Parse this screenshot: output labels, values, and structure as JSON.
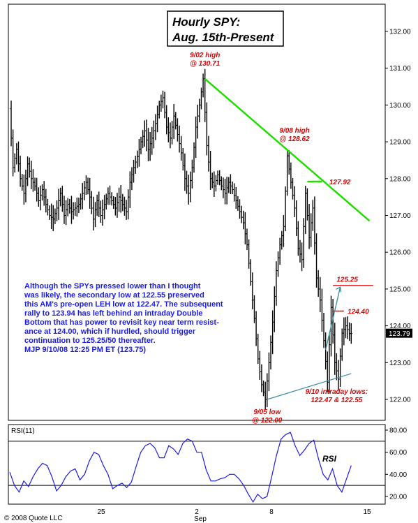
{
  "chart_data": [
    {
      "type": "ohlc",
      "title_lines": [
        "Hourly SPY:",
        "Aug. 15th-Present"
      ],
      "ylim": [
        121.4,
        132.4
      ],
      "price_ticks": [
        "132.00",
        "131.00",
        "130.00",
        "129.00",
        "128.00",
        "127.00",
        "126.00",
        "125.00",
        "124.00",
        "123.00",
        "122.00"
      ],
      "price_tick_values": [
        132,
        131,
        130,
        129,
        128,
        127,
        126,
        125,
        124,
        123,
        122
      ],
      "last_price": "123.79",
      "path": [
        [
          0,
          129.9
        ],
        [
          2,
          128.3
        ],
        [
          4,
          128.8
        ],
        [
          6,
          128.0
        ],
        [
          8,
          127.6
        ],
        [
          10,
          128.4
        ],
        [
          12,
          128.0
        ],
        [
          14,
          127.8
        ],
        [
          16,
          127.4
        ],
        [
          18,
          127.7
        ],
        [
          20,
          127.3
        ],
        [
          22,
          127.0
        ],
        [
          24,
          126.9
        ],
        [
          26,
          127.2
        ],
        [
          28,
          127.6
        ],
        [
          30,
          127.0
        ],
        [
          32,
          127.3
        ],
        [
          34,
          127.1
        ],
        [
          36,
          127.2
        ],
        [
          38,
          127.3
        ],
        [
          40,
          127.6
        ],
        [
          42,
          127.9
        ],
        [
          44,
          127.5
        ],
        [
          46,
          126.9
        ],
        [
          48,
          127.4
        ],
        [
          50,
          127.0
        ],
        [
          52,
          127.3
        ],
        [
          54,
          127.6
        ],
        [
          56,
          127.4
        ],
        [
          58,
          127.2
        ],
        [
          60,
          127.5
        ],
        [
          62,
          127.3
        ],
        [
          64,
          127.1
        ],
        [
          66,
          127.9
        ],
        [
          68,
          128.3
        ],
        [
          70,
          128.6
        ],
        [
          72,
          129.0
        ],
        [
          74,
          129.3
        ],
        [
          76,
          128.8
        ],
        [
          78,
          129.1
        ],
        [
          80,
          129.5
        ],
        [
          82,
          130.0
        ],
        [
          84,
          130.2
        ],
        [
          86,
          129.4
        ],
        [
          88,
          129.1
        ],
        [
          90,
          129.7
        ],
        [
          92,
          129.2
        ],
        [
          94,
          128.7
        ],
        [
          96,
          128.0
        ],
        [
          98,
          127.6
        ],
        [
          100,
          128.3
        ],
        [
          102,
          129.4
        ],
        [
          104,
          130.0
        ],
        [
          106,
          130.71
        ],
        [
          108,
          128.9
        ],
        [
          110,
          128.0
        ],
        [
          112,
          127.8
        ],
        [
          114,
          128.1
        ],
        [
          116,
          127.8
        ],
        [
          118,
          127.6
        ],
        [
          120,
          127.9
        ],
        [
          122,
          127.7
        ],
        [
          124,
          127.4
        ],
        [
          126,
          127.1
        ],
        [
          128,
          126.8
        ],
        [
          130,
          126.2
        ],
        [
          132,
          125.2
        ],
        [
          134,
          124.2
        ],
        [
          136,
          123.1
        ],
        [
          138,
          122.4
        ],
        [
          140,
          122.0
        ],
        [
          142,
          123.0
        ],
        [
          144,
          124.1
        ],
        [
          146,
          125.5
        ],
        [
          148,
          126.2
        ],
        [
          150,
          126.7
        ],
        [
          152,
          128.62
        ],
        [
          154,
          127.9
        ],
        [
          156,
          127.2
        ],
        [
          158,
          126.1
        ],
        [
          160,
          125.8
        ],
        [
          162,
          127.6
        ],
        [
          164,
          126.4
        ],
        [
          166,
          127.2
        ],
        [
          168,
          125.3
        ],
        [
          170,
          124.7
        ],
        [
          172,
          123.6
        ],
        [
          174,
          122.47
        ],
        [
          176,
          124.5
        ],
        [
          178,
          123.0
        ],
        [
          180,
          122.55
        ],
        [
          182,
          123.8
        ],
        [
          184,
          124.0
        ],
        [
          186,
          123.79
        ]
      ],
      "annotations": [
        {
          "lines": [
            "9/02 high",
            "@ 130.71"
          ],
          "x": 106,
          "y": 131.3,
          "anchor": "middle"
        },
        {
          "lines": [
            "9/08 high",
            "@ 128.62"
          ],
          "x": 155,
          "y": 129.25,
          "anchor": "middle"
        },
        {
          "lines": [
            "9/05 low",
            "@ 122.00"
          ],
          "x": 140,
          "y": 121.6,
          "anchor": "middle"
        },
        {
          "lines": [
            "9/10 intraday lows:",
            "122.47 & 122.55"
          ],
          "x": 178,
          "y": 122.15,
          "anchor": "middle"
        }
      ],
      "levels": [
        {
          "label": "127.92",
          "value": 127.92
        },
        {
          "label": "124.40",
          "value": 124.4
        },
        {
          "label": "125.25",
          "value": 125.25
        }
      ],
      "trendline_down": [
        [
          106,
          130.71
        ],
        [
          196,
          126.85
        ]
      ],
      "trendline_up": [
        [
          140,
          122.0
        ],
        [
          186,
          122.7
        ]
      ],
      "commentary": [
        "Although the SPYs pressed lower than I thought",
        "was likely, the secondary low at 122.55 preserved",
        "this AM's pre-open LEH low at 122.47. The subsequent",
        "rally to 123.94 has left behind an intraday Double",
        "Bottom that has power to revisit key near term resist-",
        "ance at 124.00, which if hurdled, should trigger",
        "continuation to 125.25/50 thereafter.",
        "MJP  9/10/08  12:25 PM ET  (123.75)"
      ]
    },
    {
      "type": "line",
      "title": "RSI(11)",
      "label": "RSI",
      "ylim": [
        10,
        82
      ],
      "ticks": [
        "80.00",
        "60.00",
        "40.00",
        "20.00"
      ],
      "tick_values": [
        80,
        60,
        40,
        20
      ],
      "bands": [
        70,
        30
      ],
      "values": [
        42,
        30,
        24,
        34,
        29,
        38,
        45,
        50,
        48,
        38,
        25,
        30,
        38,
        43,
        45,
        35,
        40,
        52,
        60,
        58,
        48,
        40,
        27,
        30,
        32,
        28,
        33,
        47,
        60,
        66,
        68,
        64,
        55,
        55,
        66,
        63,
        58,
        68,
        72,
        70,
        60,
        60,
        44,
        34,
        34,
        36,
        37,
        40,
        40,
        36,
        30,
        22,
        15,
        22,
        18,
        20,
        38,
        57,
        72,
        76,
        78,
        66,
        57,
        62,
        68,
        71,
        54,
        40,
        35,
        45,
        30,
        24,
        36,
        48
      ]
    }
  ],
  "x_axis": {
    "labels": [
      "25",
      "2",
      "8",
      "15"
    ],
    "sublabel": "Sep"
  },
  "copyright": "© 2008 Quote LLC"
}
